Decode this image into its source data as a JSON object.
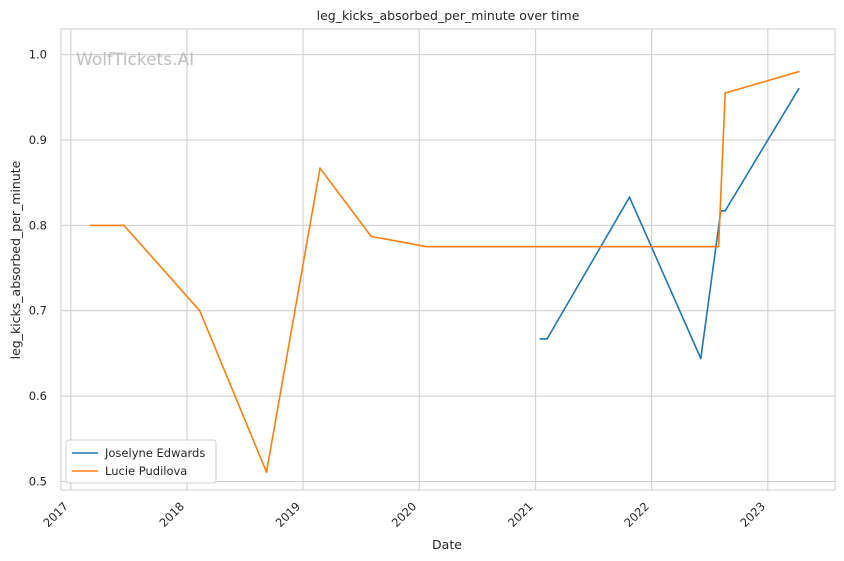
{
  "chart_data": {
    "type": "line",
    "title": "leg_kicks_absorbed_per_minute over time",
    "xlabel": "Date",
    "ylabel": "leg_kicks_absorbed_per_minute",
    "watermark": "WolfTickets.AI",
    "x_ticks": [
      "2017",
      "2018",
      "2019",
      "2020",
      "2021",
      "2022",
      "2023"
    ],
    "y_ticks": [
      "0.5",
      "0.6",
      "0.7",
      "0.8",
      "0.9",
      "1.0"
    ],
    "xlim": [
      "2016-12-01",
      "2023-07-31"
    ],
    "ylim": [
      0.49,
      1.03
    ],
    "grid": true,
    "legend_position": "lower-left",
    "series": [
      {
        "name": "Joselyne Edwards",
        "color": "#1f77b4",
        "points": [
          {
            "x": "2021-01-16",
            "y": 0.667
          },
          {
            "x": "2021-02-06",
            "y": 0.667
          },
          {
            "x": "2021-10-23",
            "y": 0.833
          },
          {
            "x": "2022-06-04",
            "y": 0.644
          },
          {
            "x": "2022-08-06",
            "y": 0.817
          },
          {
            "x": "2022-08-20",
            "y": 0.817
          },
          {
            "x": "2023-04-08",
            "y": 0.96
          }
        ]
      },
      {
        "name": "Lucie Pudilova",
        "color": "#ff7f0e",
        "points": [
          {
            "x": "2017-03-04",
            "y": 0.8
          },
          {
            "x": "2017-06-17",
            "y": 0.8
          },
          {
            "x": "2018-02-10",
            "y": 0.7
          },
          {
            "x": "2018-09-08",
            "y": 0.511
          },
          {
            "x": "2019-02-23",
            "y": 0.867
          },
          {
            "x": "2019-08-03",
            "y": 0.787
          },
          {
            "x": "2020-01-25",
            "y": 0.775
          },
          {
            "x": "2022-07-30",
            "y": 0.775
          },
          {
            "x": "2022-08-20",
            "y": 0.955
          },
          {
            "x": "2023-04-08",
            "y": 0.98
          }
        ]
      }
    ]
  }
}
